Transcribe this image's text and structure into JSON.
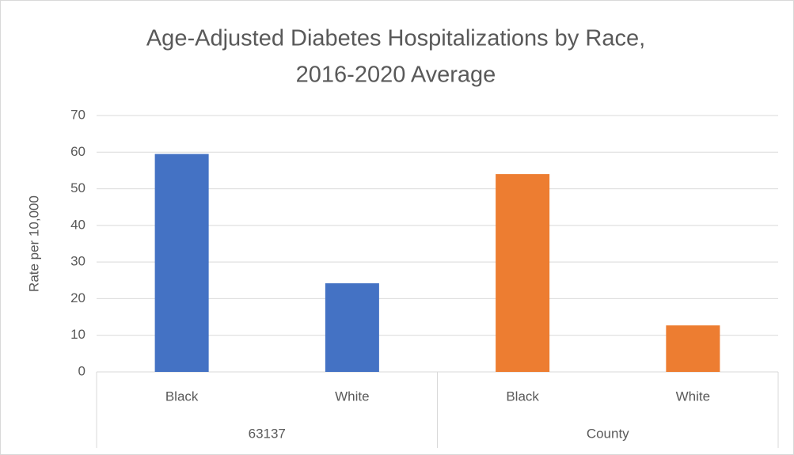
{
  "chart_data": {
    "type": "bar",
    "title": [
      "Age-Adjusted Diabetes Hospitalizations by Race,",
      "2016-2020 Average"
    ],
    "y_label": "Rate per 10,000",
    "groups": [
      {
        "name": "63137",
        "color": "#4472c4",
        "categories": [
          "Black",
          "White"
        ],
        "values": [
          59.5,
          24.2
        ]
      },
      {
        "name": "County",
        "color": "#ed7d31",
        "categories": [
          "Black",
          "White"
        ],
        "values": [
          54,
          12.7
        ]
      }
    ],
    "ylim": [
      0,
      70
    ],
    "yticks": [
      0,
      10,
      20,
      30,
      40,
      50,
      60,
      70
    ],
    "grid": true
  }
}
